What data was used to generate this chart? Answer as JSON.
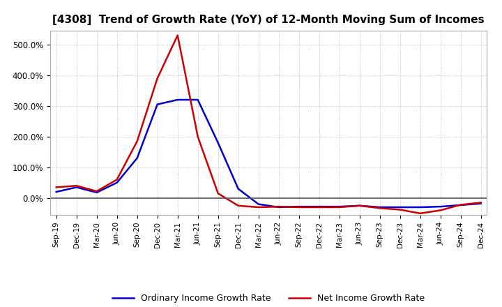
{
  "title": "[4308]  Trend of Growth Rate (YoY) of 12-Month Moving Sum of Incomes",
  "title_fontsize": 11,
  "legend_labels": [
    "Ordinary Income Growth Rate",
    "Net Income Growth Rate"
  ],
  "legend_colors": [
    "#0000CC",
    "#CC0000"
  ],
  "x_tick_labels": [
    "Sep-19",
    "Dec-19",
    "Mar-20",
    "Jun-20",
    "Sep-20",
    "Dec-20",
    "Mar-21",
    "Jun-21",
    "Sep-21",
    "Dec-21",
    "Mar-22",
    "Jun-22",
    "Sep-22",
    "Dec-22",
    "Mar-23",
    "Jun-23",
    "Sep-23",
    "Dec-23",
    "Mar-24",
    "Jun-24",
    "Sep-24",
    "Dec-24"
  ],
  "ylim": [
    -55,
    545
  ],
  "yticks": [
    0,
    100,
    200,
    300,
    400,
    500
  ],
  "ytick_labels": [
    "0.0%",
    "100.0%",
    "200.0%",
    "300.0%",
    "400.0%",
    "500.0%"
  ],
  "grid_color": "#BBBBBB",
  "background_color": "#FFFFFF",
  "ordinary_income": [
    20,
    35,
    18,
    50,
    130,
    305,
    320,
    320,
    180,
    30,
    -20,
    -30,
    -28,
    -28,
    -28,
    -25,
    -30,
    -30,
    -30,
    -28,
    -23,
    -18
  ],
  "net_income": [
    35,
    40,
    22,
    60,
    185,
    390,
    530,
    200,
    15,
    -25,
    -30,
    -28,
    -30,
    -30,
    -30,
    -25,
    -33,
    -38,
    -50,
    -40,
    -22,
    -15
  ]
}
